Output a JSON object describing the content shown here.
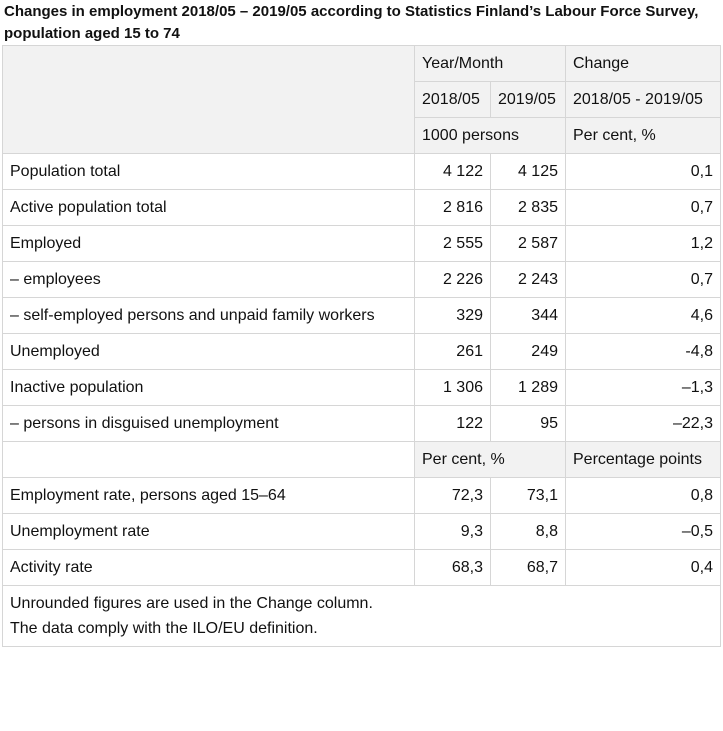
{
  "title": "Changes in employment 2018/05 – 2019/05 according to Statistics Finland’s Labour Force Survey, population aged 15 to 74",
  "table": {
    "header": {
      "year_month": "Year/Month",
      "change": "Change",
      "col_2018": "2018/05",
      "col_2019": "2019/05",
      "change_period": "2018/05 - 2019/05",
      "unit_values": "1000 persons",
      "unit_change": "Per cent, %"
    },
    "rows": [
      [
        "Population total",
        "4 122",
        "4 125",
        "0,1"
      ],
      [
        "Active population total",
        "2 816",
        "2 835",
        "0,7"
      ],
      [
        "Employed",
        "2 555",
        "2 587",
        "1,2"
      ],
      [
        "– employees",
        "2 226",
        "2 243",
        "0,7"
      ],
      [
        "– self-employed persons and unpaid family workers",
        "329",
        "344",
        "4,6"
      ],
      [
        "Unemployed",
        "261",
        "249",
        "-4,8"
      ],
      [
        "Inactive population",
        "1 306",
        "1 289",
        "–1,3"
      ],
      [
        "– persons in disguised unemployment",
        "122",
        "95",
        "–22,3"
      ]
    ],
    "rate_header": {
      "unit_values": "Per cent, %",
      "unit_change": "Percentage points"
    },
    "rate_rows": [
      [
        "Employment rate, persons aged 15–64",
        "72,3",
        "73,1",
        "0,8"
      ],
      [
        "Unemployment rate",
        "9,3",
        "8,8",
        "–0,5"
      ],
      [
        "Activity rate",
        "68,3",
        "68,7",
        "0,4"
      ]
    ],
    "footnotes": [
      "Unrounded figures are used in the Change column.",
      "The data comply with the ILO/EU definition."
    ]
  }
}
